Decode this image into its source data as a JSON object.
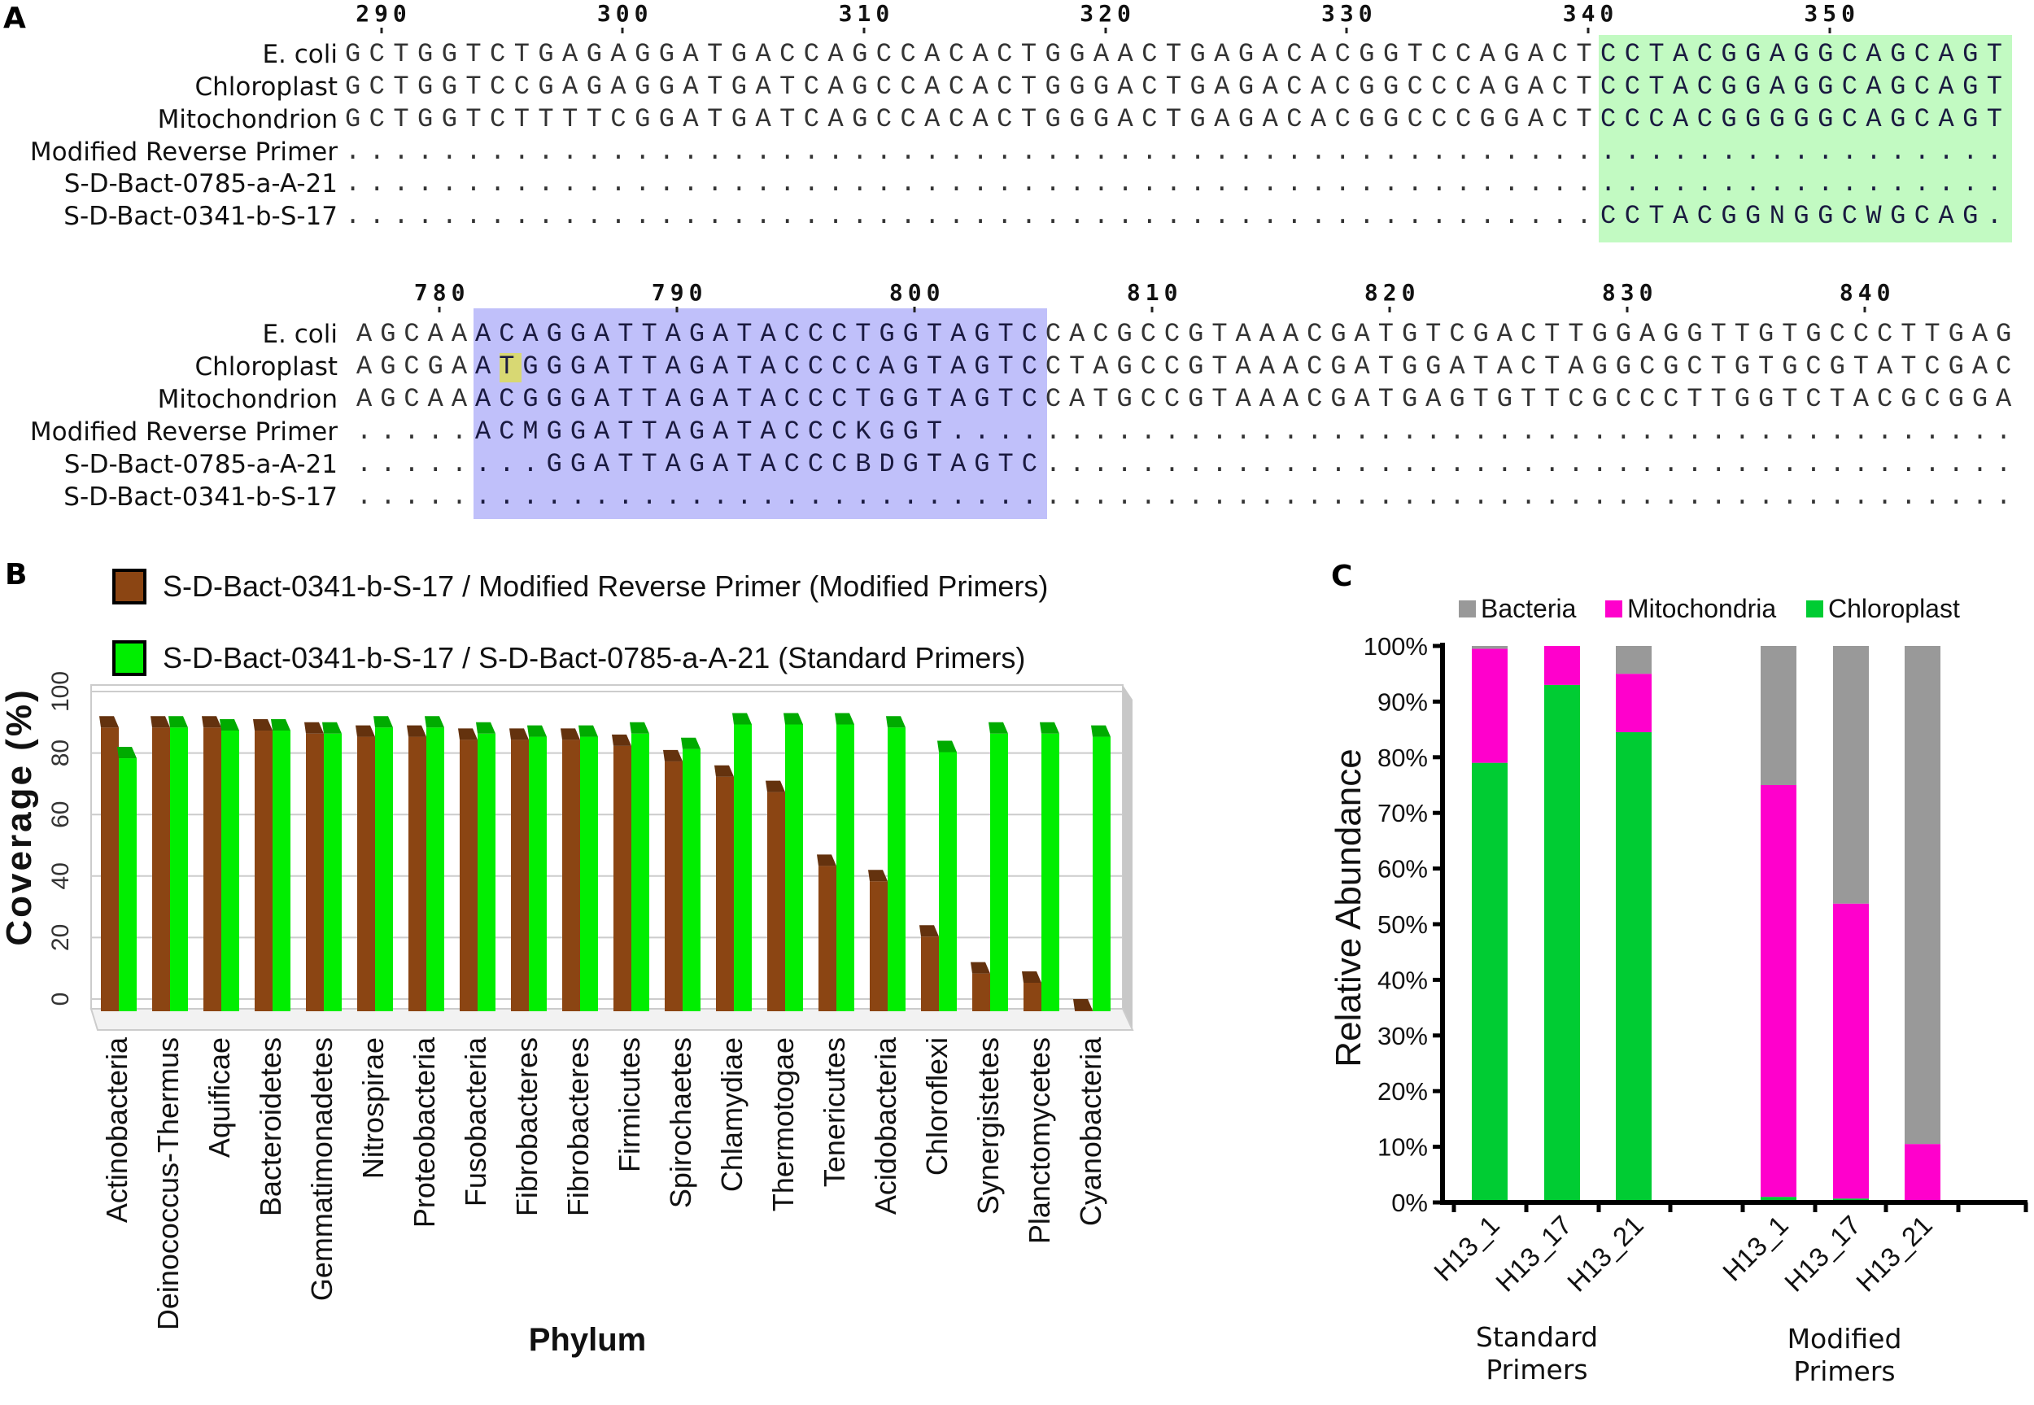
{
  "panel_labels": {
    "a": "A",
    "b": "B",
    "c": "C"
  },
  "alignment": [
    {
      "start_position": 289,
      "ticks": [
        "290",
        "300",
        "310",
        "320",
        "330",
        "340",
        "350"
      ],
      "highlight": {
        "from": 341,
        "to": 357,
        "color": "#c2fac2"
      },
      "marks": [],
      "rows": [
        {
          "label": "E. coli",
          "seq": "GCTGGTCTGAGAGGATGACCAGCCACACTGGAACTGAGACACGGTCCAGACTCCTACGGAGGCAGCAGT"
        },
        {
          "label": "Chloroplast",
          "seq": "GCTGGTCCGAGAGGATGATCAGCCACACTGGGACTGAGACACGGCCCAGACTCCTACGGAGGCAGCAGT"
        },
        {
          "label": "Mitochondrion",
          "seq": "GCTGGTCTTTTCGGATGATCAGCCACACTGGGACTGAGACACGGCCCGGACTCCCACGGGGGCAGCAGT"
        },
        {
          "label": "Modified Reverse Primer",
          "seq": "....................................................................."
        },
        {
          "label": "S-D-Bact-0785-a-A-21",
          "seq": "....................................................................."
        },
        {
          "label": "S-D-Bact-0341-b-S-17",
          "seq": "....................................................CCTACGGNGGCWGCAG."
        }
      ]
    },
    {
      "start_position": 777,
      "ticks": [
        "780",
        "790",
        "800",
        "810",
        "820",
        "830",
        "840"
      ],
      "highlight": {
        "from": 782,
        "to": 805,
        "color": "#c0c0fa"
      },
      "marks": [
        {
          "row": 1,
          "position": 783,
          "color": "#d8d873"
        }
      ],
      "rows": [
        {
          "label": "E. coli",
          "seq": "AGCAAACAGGATTAGATACCCTGGTAGTCCACGCCGTAAACGATGTCGACTTGGAGGTTGTGCCCTTGAG"
        },
        {
          "label": "Chloroplast",
          "seq": "AGCGAATGGGATTAGATACCCCAGTAGTCCTAGCCGTAAACGATGGATACTAGGCGCTGTGCGTATCGAC"
        },
        {
          "label": "Mitochondrion",
          "seq": "AGCAAACGGGATTAGATACCCTGGTAGTCCATGCCGTAAACGATGAGTGTTCGCCCTTGGTCTACGCGGA"
        },
        {
          "label": "Modified Reverse Primer",
          "seq": ".....ACMGGATTAGATACCCKGGT............................................."
        },
        {
          "label": "S-D-Bact-0785-a-A-21",
          "seq": "........GGATTAGATACCCBDGTAGTC........................................."
        },
        {
          "label": "S-D-Bact-0341-b-S-17",
          "seq": "......................................................................"
        }
      ]
    }
  ],
  "chart_data": [
    {
      "type": "bar",
      "title": "",
      "xlabel": "Phylum",
      "ylabel": "Coverage (%)",
      "ylim": [
        0,
        100
      ],
      "yticks": [
        "0",
        "20",
        "40",
        "60",
        "80",
        "100"
      ],
      "grid": true,
      "legend_position": "top",
      "categories": [
        "Actinobacteria",
        "Deinococcus-Thermus",
        "Aquificae",
        "Bacteroidetes",
        "Gemmatimonadetes",
        "Nitrospirae",
        "Proteobacteria",
        "Fusobacteria",
        "Fibrobacteres",
        "Fibrobacteres",
        "Firmicutes",
        "Spirochaetes",
        "Chlamydiae",
        "Thermotogae",
        "Tenericutes",
        "Acidobacteria",
        "Chloroflexi",
        "Synergistetes",
        "Planctomycetes",
        "Cyanobacteria"
      ],
      "series": [
        {
          "name": "S-D-Bact-0341-b-S-17 / Modified Reverse Primer (Modified Primers)",
          "color": "#8b4513",
          "values": [
            92,
            92,
            92,
            91,
            90,
            89,
            89,
            88,
            88,
            88,
            86,
            81,
            76,
            71,
            47,
            42,
            24,
            12,
            9,
            0
          ]
        },
        {
          "name": "S-D-Bact-0341-b-S-17 / S-D-Bact-0785-a-A-21 (Standard Primers)",
          "color": "#00ee00",
          "values": [
            82,
            92,
            91,
            91,
            90,
            92,
            92,
            90,
            89,
            89,
            90,
            85,
            93,
            93,
            93,
            92,
            84,
            90,
            90,
            89
          ]
        }
      ]
    },
    {
      "type": "bar",
      "stacked": true,
      "title": "",
      "ylabel": "Relative Abundance",
      "ylim": [
        0,
        100
      ],
      "yticks": [
        "0%",
        "10%",
        "20%",
        "30%",
        "40%",
        "50%",
        "60%",
        "70%",
        "80%",
        "90%",
        "100%"
      ],
      "legend_position": "top",
      "groups": [
        {
          "label": "Standard Primers",
          "categories": [
            "H13_1",
            "H13_17",
            "H13_21"
          ]
        },
        {
          "label": "Modified Primers",
          "categories": [
            "H13_1",
            "H13_17",
            "H13_21"
          ]
        }
      ],
      "series": [
        {
          "name": "Chloroplast",
          "color": "#00cc33",
          "values": [
            79,
            93,
            84.5,
            1,
            0.7,
            0
          ]
        },
        {
          "name": "Mitochondria",
          "color": "#ff00cc",
          "values": [
            20.5,
            7,
            10.5,
            74,
            53,
            10.5
          ]
        },
        {
          "name": "Bacteria",
          "color": "#999999",
          "values": [
            0.5,
            0,
            5,
            25,
            46.3,
            89.5
          ]
        }
      ],
      "legend_order": [
        "Bacteria",
        "Mitochondria",
        "Chloroplast"
      ]
    }
  ]
}
